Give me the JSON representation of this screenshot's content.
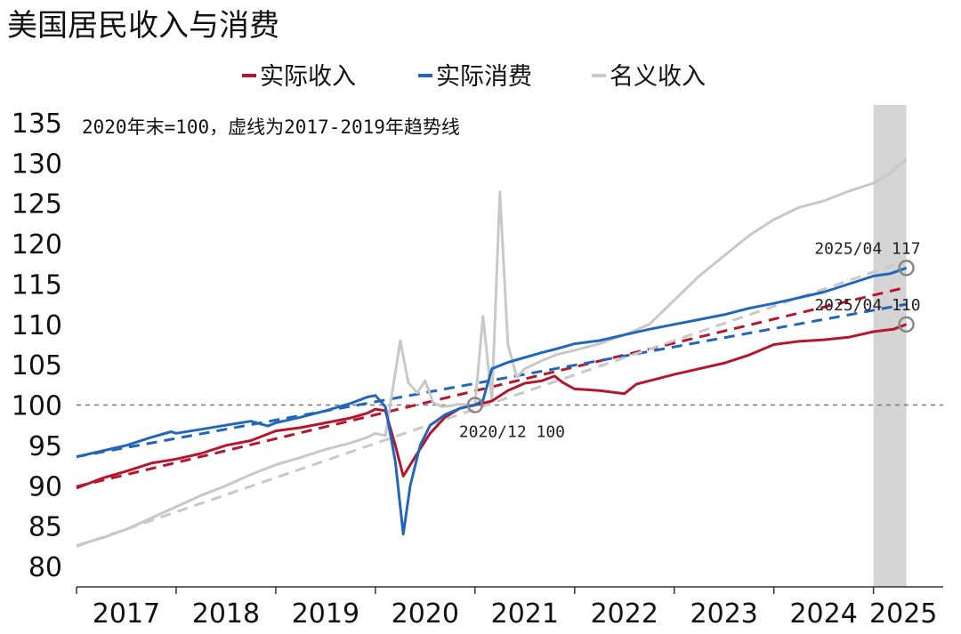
{
  "chart_data": {
    "type": "line",
    "title": "美国居民收入与消费",
    "note": "2020年末=100，虚线为2017-2019年趋势线",
    "ylim": [
      80,
      135
    ],
    "yticks": [
      80,
      85,
      90,
      95,
      100,
      105,
      110,
      115,
      120,
      125,
      130,
      135
    ],
    "xlim": [
      2017.0,
      2025.7
    ],
    "xticks": [
      {
        "label": "2017",
        "x": 2017.5
      },
      {
        "label": "2018",
        "x": 2018.5
      },
      {
        "label": "2019",
        "x": 2019.5
      },
      {
        "label": "2020",
        "x": 2020.5
      },
      {
        "label": "2021",
        "x": 2021.5
      },
      {
        "label": "2022",
        "x": 2022.5
      },
      {
        "label": "2023",
        "x": 2023.5
      },
      {
        "label": "2024",
        "x": 2024.5
      },
      {
        "label": "2025",
        "x": 2025.3
      }
    ],
    "reference_line": {
      "y": 100,
      "style": "dashed",
      "color": "#777777"
    },
    "shaded_region": {
      "x0": 2025.0,
      "x1": 2025.33,
      "color": "#d4d4d4"
    },
    "legend_position": "top-center",
    "series": [
      {
        "name": "实际收入",
        "color": "#b4172d",
        "points": [
          [
            2017.0,
            89.7
          ],
          [
            2017.25,
            90.9
          ],
          [
            2017.5,
            91.8
          ],
          [
            2017.75,
            92.8
          ],
          [
            2018.0,
            93.3
          ],
          [
            2018.25,
            94.0
          ],
          [
            2018.5,
            95.0
          ],
          [
            2018.75,
            95.6
          ],
          [
            2019.0,
            96.8
          ],
          [
            2019.25,
            97.2
          ],
          [
            2019.5,
            97.8
          ],
          [
            2019.75,
            98.4
          ],
          [
            2019.92,
            99.0
          ],
          [
            2020.0,
            99.5
          ],
          [
            2020.1,
            99.3
          ],
          [
            2020.2,
            95.0
          ],
          [
            2020.28,
            91.2
          ],
          [
            2020.42,
            94.0
          ],
          [
            2020.55,
            96.5
          ],
          [
            2020.7,
            98.5
          ],
          [
            2020.85,
            99.6
          ],
          [
            2021.0,
            100.0
          ],
          [
            2021.17,
            100.5
          ],
          [
            2021.33,
            101.8
          ],
          [
            2021.5,
            102.7
          ],
          [
            2021.67,
            103.0
          ],
          [
            2021.8,
            103.6
          ],
          [
            2021.88,
            102.8
          ],
          [
            2022.0,
            102.0
          ],
          [
            2022.25,
            101.8
          ],
          [
            2022.5,
            101.4
          ],
          [
            2022.62,
            102.6
          ],
          [
            2022.75,
            103.0
          ],
          [
            2023.0,
            103.8
          ],
          [
            2023.25,
            104.5
          ],
          [
            2023.5,
            105.2
          ],
          [
            2023.75,
            106.2
          ],
          [
            2024.0,
            107.5
          ],
          [
            2024.25,
            107.9
          ],
          [
            2024.5,
            108.1
          ],
          [
            2024.75,
            108.4
          ],
          [
            2025.0,
            109.1
          ],
          [
            2025.2,
            109.4
          ],
          [
            2025.33,
            110.0
          ]
        ]
      },
      {
        "name": "实际消费",
        "color": "#2166bb",
        "points": [
          [
            2017.0,
            93.6
          ],
          [
            2017.25,
            94.3
          ],
          [
            2017.5,
            95.0
          ],
          [
            2017.75,
            96.0
          ],
          [
            2017.95,
            96.7
          ],
          [
            2018.0,
            96.5
          ],
          [
            2018.25,
            97.0
          ],
          [
            2018.5,
            97.5
          ],
          [
            2018.75,
            98.0
          ],
          [
            2018.92,
            97.4
          ],
          [
            2019.0,
            97.8
          ],
          [
            2019.25,
            98.5
          ],
          [
            2019.5,
            99.3
          ],
          [
            2019.75,
            100.2
          ],
          [
            2019.92,
            101.0
          ],
          [
            2020.0,
            101.2
          ],
          [
            2020.1,
            99.8
          ],
          [
            2020.2,
            93.0
          ],
          [
            2020.28,
            84.0
          ],
          [
            2020.35,
            90.0
          ],
          [
            2020.45,
            95.0
          ],
          [
            2020.55,
            97.5
          ],
          [
            2020.7,
            98.8
          ],
          [
            2020.85,
            99.6
          ],
          [
            2021.0,
            100.0
          ],
          [
            2021.08,
            100.6
          ],
          [
            2021.17,
            104.5
          ],
          [
            2021.33,
            105.3
          ],
          [
            2021.5,
            105.9
          ],
          [
            2021.67,
            106.5
          ],
          [
            2021.83,
            107.0
          ],
          [
            2022.0,
            107.6
          ],
          [
            2022.25,
            108.0
          ],
          [
            2022.5,
            108.7
          ],
          [
            2022.75,
            109.4
          ],
          [
            2023.0,
            110.0
          ],
          [
            2023.25,
            110.6
          ],
          [
            2023.5,
            111.2
          ],
          [
            2023.75,
            112.0
          ],
          [
            2024.0,
            112.6
          ],
          [
            2024.25,
            113.3
          ],
          [
            2024.5,
            114.0
          ],
          [
            2024.75,
            115.0
          ],
          [
            2025.0,
            116.0
          ],
          [
            2025.17,
            116.3
          ],
          [
            2025.33,
            117.0
          ]
        ]
      },
      {
        "name": "名义收入",
        "color": "#c8c8c8",
        "points": [
          [
            2017.0,
            82.6
          ],
          [
            2017.25,
            83.5
          ],
          [
            2017.5,
            84.6
          ],
          [
            2017.75,
            86.0
          ],
          [
            2018.0,
            87.4
          ],
          [
            2018.25,
            88.8
          ],
          [
            2018.5,
            90.0
          ],
          [
            2018.75,
            91.4
          ],
          [
            2019.0,
            92.6
          ],
          [
            2019.25,
            93.5
          ],
          [
            2019.5,
            94.5
          ],
          [
            2019.75,
            95.3
          ],
          [
            2019.92,
            96.0
          ],
          [
            2020.0,
            96.5
          ],
          [
            2020.1,
            96.2
          ],
          [
            2020.25,
            108.0
          ],
          [
            2020.33,
            102.8
          ],
          [
            2020.42,
            101.5
          ],
          [
            2020.5,
            103.0
          ],
          [
            2020.58,
            100.3
          ],
          [
            2020.67,
            99.8
          ],
          [
            2020.75,
            99.9
          ],
          [
            2020.83,
            100.1
          ],
          [
            2021.0,
            100.0
          ],
          [
            2021.08,
            111.0
          ],
          [
            2021.17,
            100.5
          ],
          [
            2021.25,
            126.4
          ],
          [
            2021.33,
            107.5
          ],
          [
            2021.42,
            103.5
          ],
          [
            2021.5,
            104.5
          ],
          [
            2021.67,
            105.5
          ],
          [
            2021.83,
            106.3
          ],
          [
            2022.0,
            106.8
          ],
          [
            2022.25,
            107.6
          ],
          [
            2022.5,
            108.7
          ],
          [
            2022.75,
            110.0
          ],
          [
            2023.0,
            113.0
          ],
          [
            2023.25,
            116.0
          ],
          [
            2023.5,
            118.5
          ],
          [
            2023.75,
            121.0
          ],
          [
            2024.0,
            123.0
          ],
          [
            2024.25,
            124.5
          ],
          [
            2024.5,
            125.3
          ],
          [
            2024.75,
            126.5
          ],
          [
            2025.0,
            127.5
          ],
          [
            2025.17,
            128.8
          ],
          [
            2025.33,
            130.5
          ]
        ]
      }
    ],
    "trend_lines": [
      {
        "series": "实际收入",
        "color": "#b4172d",
        "x0": 2017.0,
        "y0": 89.9,
        "x1": 2025.33,
        "y1": 114.6
      },
      {
        "series": "实际消费",
        "color": "#2166bb",
        "x0": 2017.0,
        "y0": 93.6,
        "x1": 2025.33,
        "y1": 112.5
      },
      {
        "series": "名义收入",
        "color": "#c8c8c8",
        "x0": 2017.0,
        "y0": 82.5,
        "x1": 2025.33,
        "y1": 117.9
      }
    ],
    "annotations": [
      {
        "text": "2020/12 100",
        "x": 2021.0,
        "y": 100.0,
        "label_position": "below-right"
      },
      {
        "text": "2025/04 117",
        "x": 2025.33,
        "y": 117.0,
        "label_position": "above-left"
      },
      {
        "text": "2025/04 110",
        "x": 2025.33,
        "y": 110.0,
        "label_position": "above-left"
      }
    ],
    "colors": {
      "axis": "#333333",
      "reference": "#777777",
      "marker": "#888888"
    }
  }
}
